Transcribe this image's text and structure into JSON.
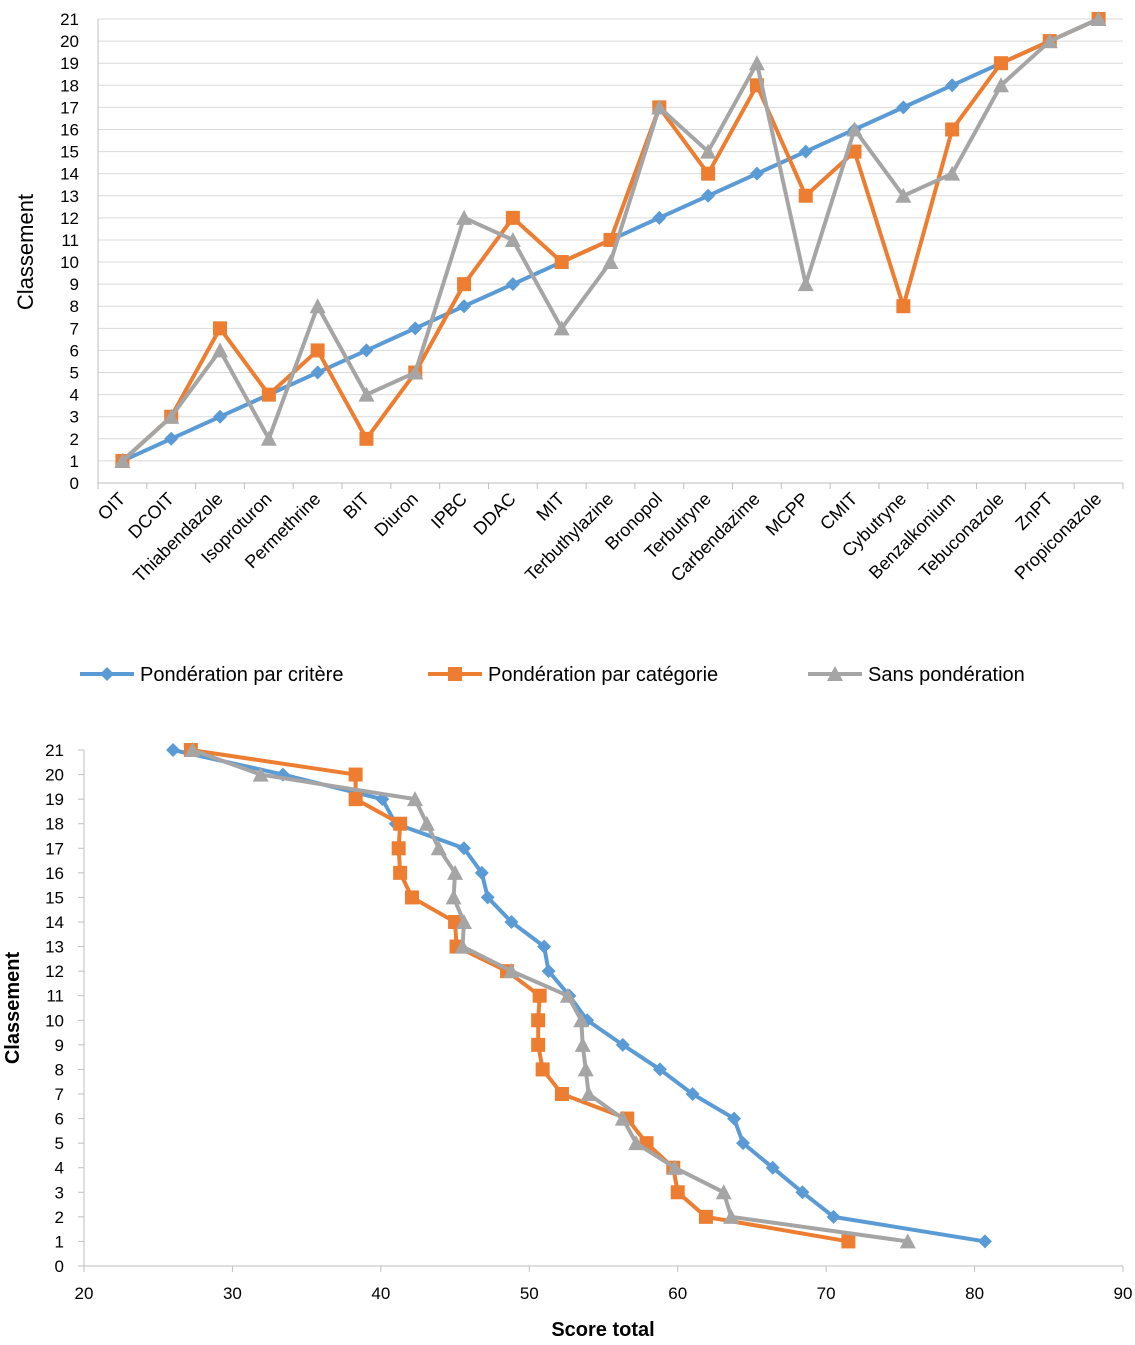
{
  "colors": {
    "series1": "#5B9BD5",
    "series2": "#ED7D31",
    "series3": "#A5A5A5",
    "grid": "#D9D9D9",
    "axis": "#BFBFBF"
  },
  "chart_data": [
    {
      "type": "line",
      "ylabel": "Classement",
      "ylim": [
        0,
        21
      ],
      "yticks": [
        "0",
        "1",
        "2",
        "3",
        "4",
        "5",
        "6",
        "7",
        "8",
        "9",
        "10",
        "11",
        "12",
        "13",
        "14",
        "15",
        "16",
        "17",
        "18",
        "19",
        "20",
        "21"
      ],
      "grid": "horizontal",
      "legend_position": "bottom",
      "categories": [
        "OIT",
        "DCOIT",
        "Thiabendazole",
        "Isoproturon",
        "Permethrine",
        "BIT",
        "Diuron",
        "IPBC",
        "DDAC",
        "MIT",
        "Terbuthylazine",
        "Bronopol",
        "Terbutryne",
        "Carbendazime",
        "MCPP",
        "CMIT",
        "Cybutryne",
        "Benzalkonium",
        "Tebuconazole",
        "ZnPT",
        "Propiconazole"
      ],
      "series": [
        {
          "name": "Pondération par critère",
          "marker": "diamond",
          "values": [
            1,
            2,
            3,
            4,
            5,
            6,
            7,
            8,
            9,
            10,
            11,
            12,
            13,
            14,
            15,
            16,
            17,
            18,
            19,
            20,
            21
          ]
        },
        {
          "name": "Pondération par catégorie",
          "marker": "square",
          "values": [
            1,
            3,
            7,
            4,
            6,
            2,
            5,
            9,
            12,
            10,
            11,
            17,
            14,
            18,
            13,
            15,
            8,
            16,
            19,
            20,
            21
          ]
        },
        {
          "name": "Sans pondération",
          "marker": "triangle",
          "values": [
            1,
            3,
            6,
            2,
            8,
            4,
            5,
            12,
            11,
            7,
            10,
            17,
            15,
            19,
            9,
            16,
            13,
            14,
            18,
            20,
            21
          ]
        }
      ]
    },
    {
      "type": "line",
      "xlabel": "Score total",
      "ylabel": "Classement",
      "xlim": [
        20,
        90
      ],
      "ylim": [
        0,
        21
      ],
      "xticks": [
        "20",
        "30",
        "40",
        "50",
        "60",
        "70",
        "80",
        "90"
      ],
      "yticks": [
        "0",
        "1",
        "2",
        "3",
        "4",
        "5",
        "6",
        "7",
        "8",
        "9",
        "10",
        "11",
        "12",
        "13",
        "14",
        "15",
        "16",
        "17",
        "18",
        "19",
        "20",
        "21"
      ],
      "series": [
        {
          "name": "Pondération par critère",
          "marker": "diamond",
          "x": [
            80.7,
            70.5,
            68.4,
            66.4,
            64.4,
            63.8,
            61.0,
            58.8,
            56.3,
            53.9,
            52.7,
            51.3,
            51.0,
            48.8,
            47.2,
            46.8,
            45.6,
            41.0,
            40.1,
            33.4,
            26.0
          ],
          "y": [
            1,
            2,
            3,
            4,
            5,
            6,
            7,
            8,
            9,
            10,
            11,
            12,
            13,
            14,
            15,
            16,
            17,
            18,
            19,
            20,
            21
          ]
        },
        {
          "name": "Pondération par catégorie",
          "marker": "square",
          "x": [
            71.5,
            61.9,
            60.0,
            59.7,
            57.9,
            56.6,
            52.2,
            50.9,
            50.6,
            50.6,
            50.7,
            48.5,
            45.1,
            45.0,
            42.1,
            41.3,
            41.2,
            41.3,
            38.3,
            38.3,
            27.2
          ],
          "y": [
            1,
            2,
            3,
            4,
            5,
            6,
            7,
            8,
            9,
            10,
            11,
            12,
            13,
            14,
            15,
            16,
            17,
            18,
            19,
            20,
            21
          ]
        },
        {
          "name": "Sans pondération",
          "marker": "triangle",
          "x": [
            75.5,
            63.6,
            63.1,
            59.8,
            57.2,
            56.3,
            54.0,
            53.8,
            53.6,
            53.5,
            52.6,
            48.8,
            45.5,
            45.6,
            44.9,
            45.0,
            43.9,
            43.1,
            42.3,
            31.9,
            27.3
          ],
          "y": [
            1,
            2,
            3,
            4,
            5,
            6,
            7,
            8,
            9,
            10,
            11,
            12,
            13,
            14,
            15,
            16,
            17,
            18,
            19,
            20,
            21
          ]
        }
      ]
    }
  ]
}
